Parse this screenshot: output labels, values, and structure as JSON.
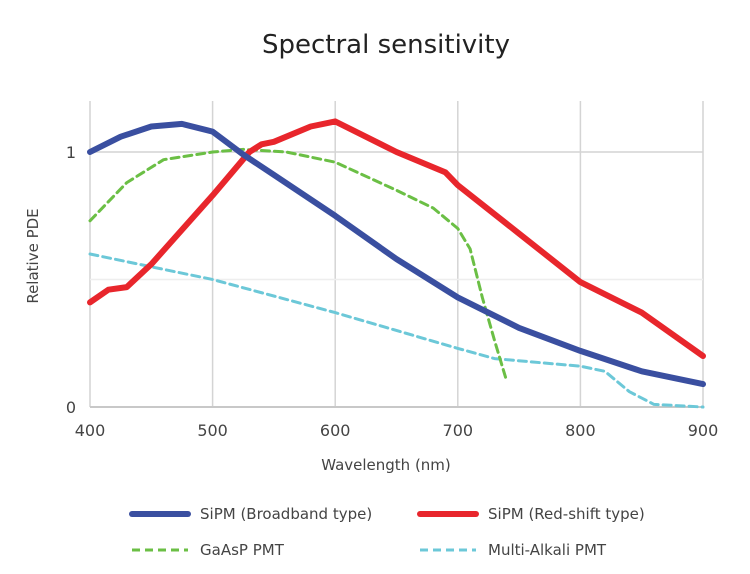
{
  "chart_data": {
    "type": "line",
    "title": "Spectral sensitivity",
    "xlabel": "Wavelength (nm)",
    "ylabel": "Relative PDE",
    "xlim": [
      400,
      900
    ],
    "ylim": [
      0,
      1.2
    ],
    "xticks": [
      400,
      500,
      600,
      700,
      800,
      900
    ],
    "yticks": [
      {
        "value": 0,
        "label": "0"
      },
      {
        "value": 1,
        "label": "1"
      }
    ],
    "grid": true,
    "legend_position": "bottom",
    "series": [
      {
        "name": "SiPM (Broadband type)",
        "color": "#3a4fa0",
        "style": "solid",
        "x": [
          400,
          425,
          450,
          475,
          500,
          525,
          550,
          600,
          650,
          700,
          750,
          800,
          850,
          900
        ],
        "y": [
          1.0,
          1.06,
          1.1,
          1.11,
          1.08,
          0.99,
          0.91,
          0.75,
          0.58,
          0.43,
          0.31,
          0.22,
          0.14,
          0.09
        ]
      },
      {
        "name": "SiPM (Red-shift type)",
        "color": "#e8262c",
        "style": "solid",
        "x": [
          400,
          415,
          430,
          450,
          500,
          530,
          540,
          550,
          580,
          600,
          650,
          690,
          700,
          750,
          800,
          850,
          900
        ],
        "y": [
          0.41,
          0.46,
          0.47,
          0.56,
          0.83,
          1.0,
          1.03,
          1.04,
          1.1,
          1.12,
          1.0,
          0.92,
          0.87,
          0.68,
          0.49,
          0.37,
          0.2
        ]
      },
      {
        "name": "GaAsP PMT",
        "color": "#6bbf45",
        "style": "dashed",
        "x": [
          400,
          430,
          460,
          500,
          525,
          560,
          600,
          650,
          680,
          700,
          710,
          720,
          730,
          740
        ],
        "y": [
          0.73,
          0.88,
          0.97,
          1.0,
          1.01,
          1.0,
          0.96,
          0.85,
          0.78,
          0.7,
          0.62,
          0.43,
          0.26,
          0.1
        ]
      },
      {
        "name": "Multi-Alkali PMT",
        "color": "#6cc8d8",
        "style": "dashed",
        "x": [
          400,
          450,
          500,
          600,
          700,
          730,
          800,
          820,
          840,
          860,
          900
        ],
        "y": [
          0.6,
          0.55,
          0.5,
          0.37,
          0.23,
          0.19,
          0.16,
          0.14,
          0.06,
          0.01,
          0.0
        ]
      }
    ]
  }
}
